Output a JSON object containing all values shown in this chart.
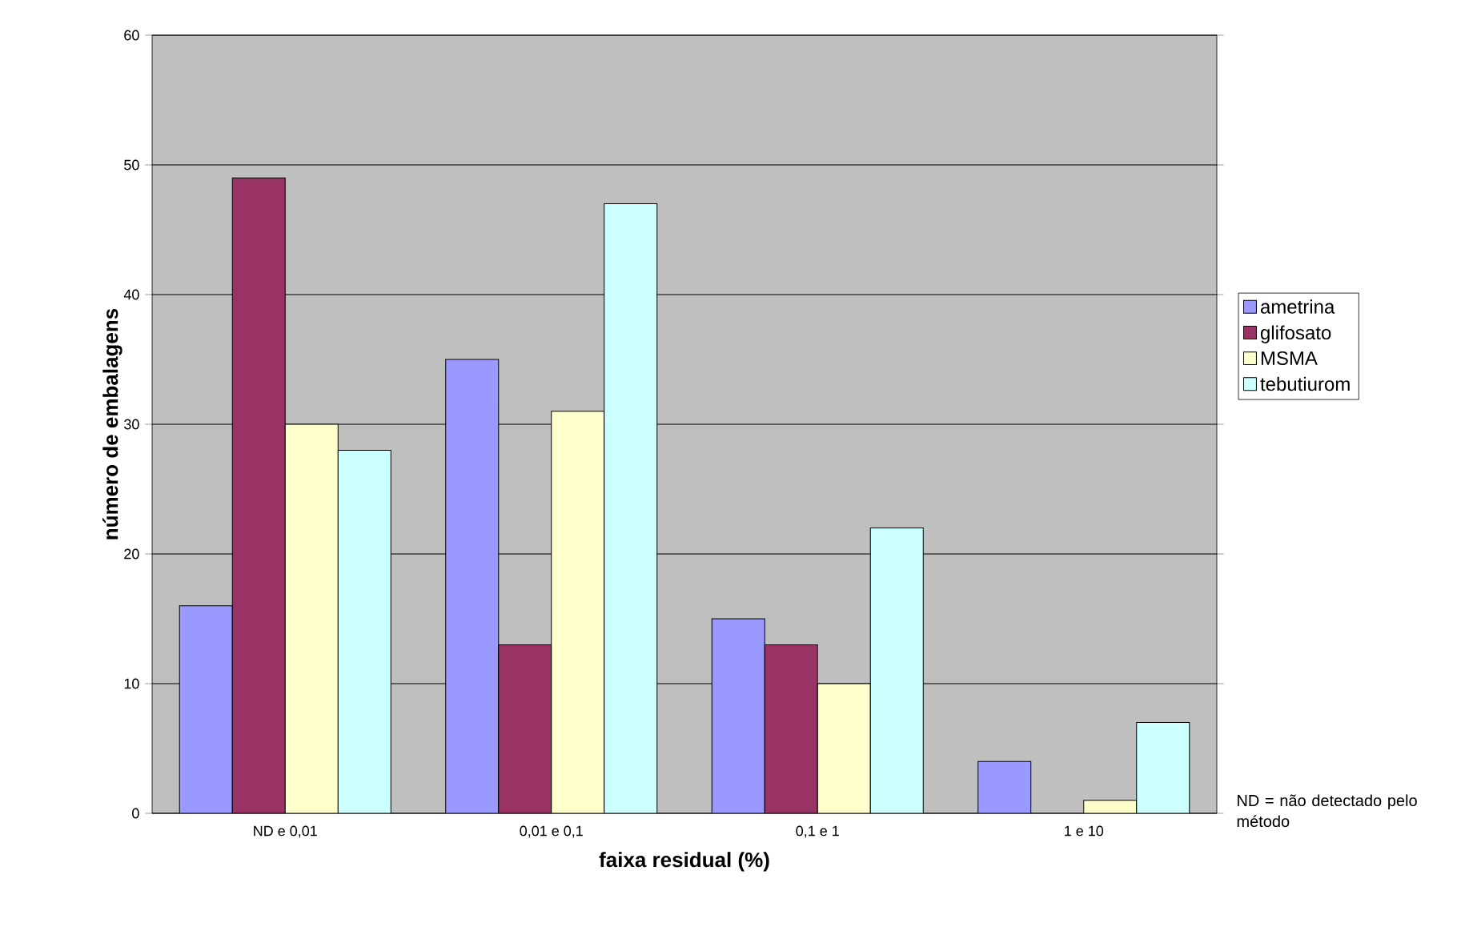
{
  "chart_data": {
    "type": "bar",
    "xlabel": "faixa residual (%)",
    "ylabel": "número de embalagens",
    "categories": [
      "ND e 0,01",
      "0,01 e 0,1",
      "0,1 e 1",
      "1 e 10"
    ],
    "series": [
      {
        "name": "ametrina",
        "color": "#9999ff",
        "values": [
          16,
          35,
          15,
          4
        ]
      },
      {
        "name": "glifosato",
        "color": "#993366",
        "values": [
          49,
          13,
          13,
          null
        ]
      },
      {
        "name": "MSMA",
        "color": "#ffffcc",
        "values": [
          30,
          31,
          10,
          1
        ]
      },
      {
        "name": "tebutiurom",
        "color": "#ccffff",
        "values": [
          28,
          47,
          22,
          7
        ]
      }
    ],
    "ylim": [
      0,
      60
    ],
    "yticks": [
      0,
      10,
      20,
      30,
      40,
      50,
      60
    ],
    "grid": "y",
    "legend": "right",
    "annotations": [
      "ND = não detectado pelo método"
    ]
  }
}
